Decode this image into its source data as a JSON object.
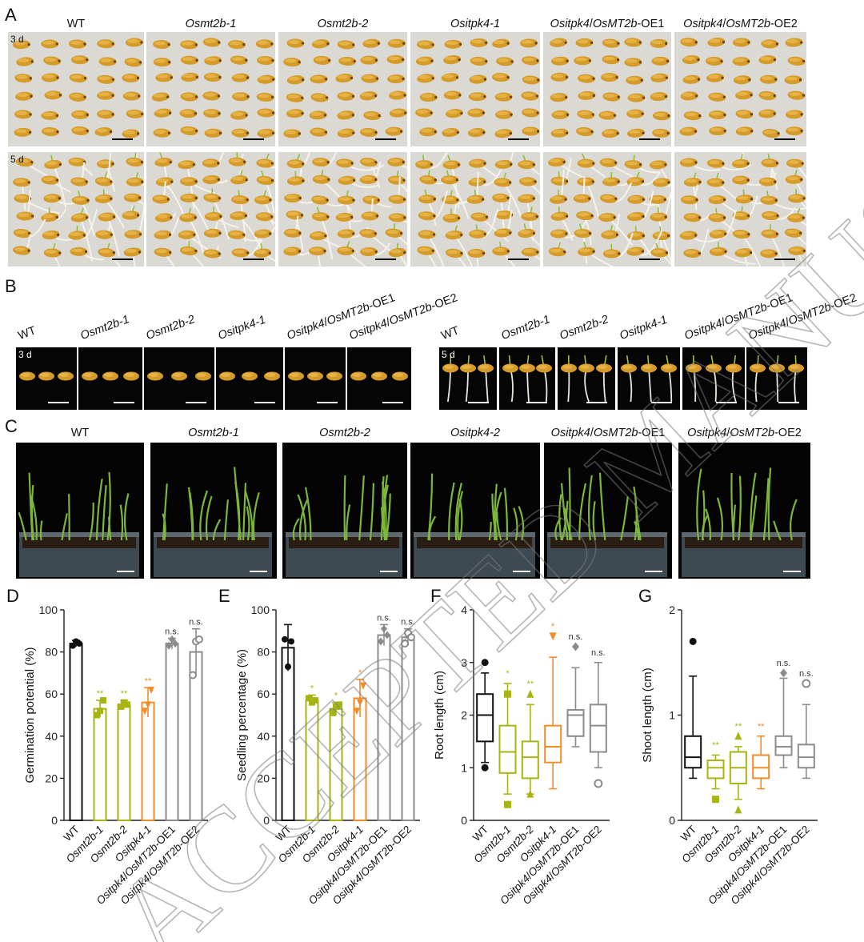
{
  "panels": {
    "A": {
      "letter": "A",
      "labels": [
        {
          "pre": "",
          "it": "",
          "post": "WT"
        },
        {
          "pre": "",
          "it": "Osmt2b-1",
          "post": ""
        },
        {
          "pre": "",
          "it": "Osmt2b-2",
          "post": ""
        },
        {
          "pre": "",
          "it": "Ositpk4-1",
          "post": ""
        },
        {
          "pre": "",
          "it": "Ositpk4",
          "post": "/",
          "it2": "OsMT2b",
          "post2": "-OE1"
        },
        {
          "pre": "",
          "it": "Ositpk4",
          "post": "/",
          "it2": "OsMT2b",
          "post2": "-OE2"
        }
      ],
      "row_labels": [
        "3 d",
        "5 d"
      ]
    },
    "B": {
      "letter": "B",
      "labels": [
        "WT",
        "Osmt2b-1",
        "Osmt2b-2",
        "Ositpk4-1",
        "Ositpk4/OsMT2b-OE1",
        "Ositpk4/OsMT2b-OE2"
      ],
      "day_left": "3 d",
      "day_right": "5 d"
    },
    "C": {
      "letter": "C",
      "labels": [
        {
          "it": "",
          "post": "WT"
        },
        {
          "it": "Osmt2b-1",
          "post": ""
        },
        {
          "it": "Osmt2b-2",
          "post": ""
        },
        {
          "it": "Ositpk4-2",
          "post": ""
        },
        {
          "it": "Ositpk4",
          "post": "/",
          "it2": "OsMT2b",
          "post2": "-OE1"
        },
        {
          "it": "Ositpk4",
          "post": "/",
          "it2": "OsMT2b",
          "post2": "-OE2"
        }
      ]
    }
  },
  "colors": {
    "wt": "#111111",
    "mt2b": "#a8b414",
    "itpk4": "#f28c28",
    "oe": "#8c8c8c"
  },
  "chart_data": [
    {
      "panel": "D",
      "type": "bar",
      "categories": [
        "WT",
        "Osmt2b-1",
        "Osmt2b-2",
        "Ositpk4-1",
        "Ositpk4/OsMT2b-OE1",
        "Ositpk4/OsMT2b-OE2"
      ],
      "values": [
        84,
        53,
        55,
        56,
        84,
        80
      ],
      "errors": [
        1.5,
        4,
        2,
        7,
        2.5,
        11
      ],
      "points": [
        [
          83,
          85,
          84
        ],
        [
          50,
          52,
          57
        ],
        [
          54,
          56,
          55
        ],
        [
          52,
          55,
          62
        ],
        [
          83,
          86,
          84
        ],
        [
          69,
          85,
          86
        ]
      ],
      "significance": [
        "",
        "**",
        "**",
        "**",
        "n.s.",
        "n.s."
      ],
      "ylabel": "Germination potential (%)",
      "yticks": [
        "0",
        "20",
        "40",
        "60",
        "80",
        "100"
      ],
      "ylim": [
        0,
        100
      ]
    },
    {
      "panel": "E",
      "type": "bar",
      "categories": [
        "WT",
        "Osmt2b-1",
        "Osmt2b-2",
        "Ositpk4-1",
        "Ositpk4/OsMT2b-OE1",
        "Ositpk4/OsMT2b-OE2"
      ],
      "values": [
        82,
        57,
        53,
        58,
        88,
        87
      ],
      "errors": [
        11,
        2.5,
        3,
        9,
        5,
        4
      ],
      "points": [
        [
          86,
          73,
          85
        ],
        [
          58,
          56,
          57
        ],
        [
          51,
          54,
          55
        ],
        [
          52,
          56,
          64
        ],
        [
          85,
          91,
          88
        ],
        [
          84,
          89,
          87
        ]
      ],
      "significance": [
        "",
        "*",
        "*",
        "*",
        "n.s.",
        "n.s."
      ],
      "ylabel": "Seedling percentage (%)",
      "yticks": [
        "0",
        "20",
        "40",
        "60",
        "80",
        "100"
      ],
      "ylim": [
        0,
        100
      ]
    },
    {
      "panel": "F",
      "type": "box",
      "categories": [
        "WT",
        "Osmt2b-1",
        "Osmt2b-2",
        "Ositpk4-1",
        "Ositpk4/OsMT2b-OE1",
        "Ositpk4/OsMT2b-OE2"
      ],
      "boxes": [
        {
          "min": 1.1,
          "q1": 1.5,
          "median": 2.0,
          "q3": 2.4,
          "max": 2.8,
          "outliers": [
            3.0,
            1.0
          ],
          "marker": "circle"
        },
        {
          "min": 0.5,
          "q1": 0.9,
          "median": 1.3,
          "q3": 1.8,
          "max": 2.6,
          "outliers": [
            0.3,
            2.4
          ],
          "marker": "square"
        },
        {
          "min": 0.5,
          "q1": 0.8,
          "median": 1.2,
          "q3": 1.5,
          "max": 2.2,
          "outliers": [
            0.5,
            2.4
          ],
          "marker": "triangle"
        },
        {
          "min": 0.6,
          "q1": 1.1,
          "median": 1.4,
          "q3": 1.8,
          "max": 3.1,
          "outliers": [
            3.5
          ],
          "marker": "triangle-down"
        },
        {
          "min": 1.4,
          "q1": 1.6,
          "median": 2.0,
          "q3": 2.1,
          "max": 2.9,
          "outliers": [
            3.3
          ],
          "marker": "diamond"
        },
        {
          "min": 1.0,
          "q1": 1.3,
          "median": 1.8,
          "q3": 2.2,
          "max": 3.0,
          "outliers": [
            0.7
          ],
          "marker": "circle-open"
        }
      ],
      "significance": [
        "",
        "*",
        "**",
        "*",
        "n.s.",
        "n.s."
      ],
      "ylabel": "Root length (cm)",
      "yticks": [
        "0",
        "1",
        "2",
        "3",
        "4"
      ],
      "ylim": [
        0,
        4
      ]
    },
    {
      "panel": "G",
      "type": "box",
      "categories": [
        "WT",
        "Osmt2b-1",
        "Osmt2b-2",
        "Ositpk4-1",
        "Ositpk4/OsMT2b-OE1",
        "Ositpk4/OsMT2b-OE2"
      ],
      "boxes": [
        {
          "min": 0.4,
          "q1": 0.5,
          "median": 0.6,
          "q3": 0.8,
          "max": 1.37,
          "outliers": [
            1.7
          ],
          "marker": "circle"
        },
        {
          "min": 0.3,
          "q1": 0.4,
          "median": 0.5,
          "q3": 0.57,
          "max": 0.62,
          "outliers": [
            0.2
          ],
          "marker": "square"
        },
        {
          "min": 0.2,
          "q1": 0.35,
          "median": 0.5,
          "q3": 0.65,
          "max": 0.7,
          "outliers": [
            0.1,
            0.8
          ],
          "marker": "triangle"
        },
        {
          "min": 0.3,
          "q1": 0.4,
          "median": 0.5,
          "q3": 0.62,
          "max": 0.8,
          "outliers": [],
          "marker": "triangle-down"
        },
        {
          "min": 0.5,
          "q1": 0.62,
          "median": 0.7,
          "q3": 0.8,
          "max": 1.35,
          "outliers": [
            1.4
          ],
          "marker": "diamond"
        },
        {
          "min": 0.4,
          "q1": 0.5,
          "median": 0.6,
          "q3": 0.72,
          "max": 1.1,
          "outliers": [
            1.3
          ],
          "marker": "circle-open"
        }
      ],
      "significance": [
        "",
        "**",
        "**",
        "**",
        "n.s.",
        "n.s."
      ],
      "ylabel": "Shoot length (cm)",
      "yticks": [
        "0",
        "1",
        "2"
      ],
      "ylim": [
        0,
        2
      ]
    }
  ],
  "watermark": "ACCEPTED MANUSCRIPT"
}
